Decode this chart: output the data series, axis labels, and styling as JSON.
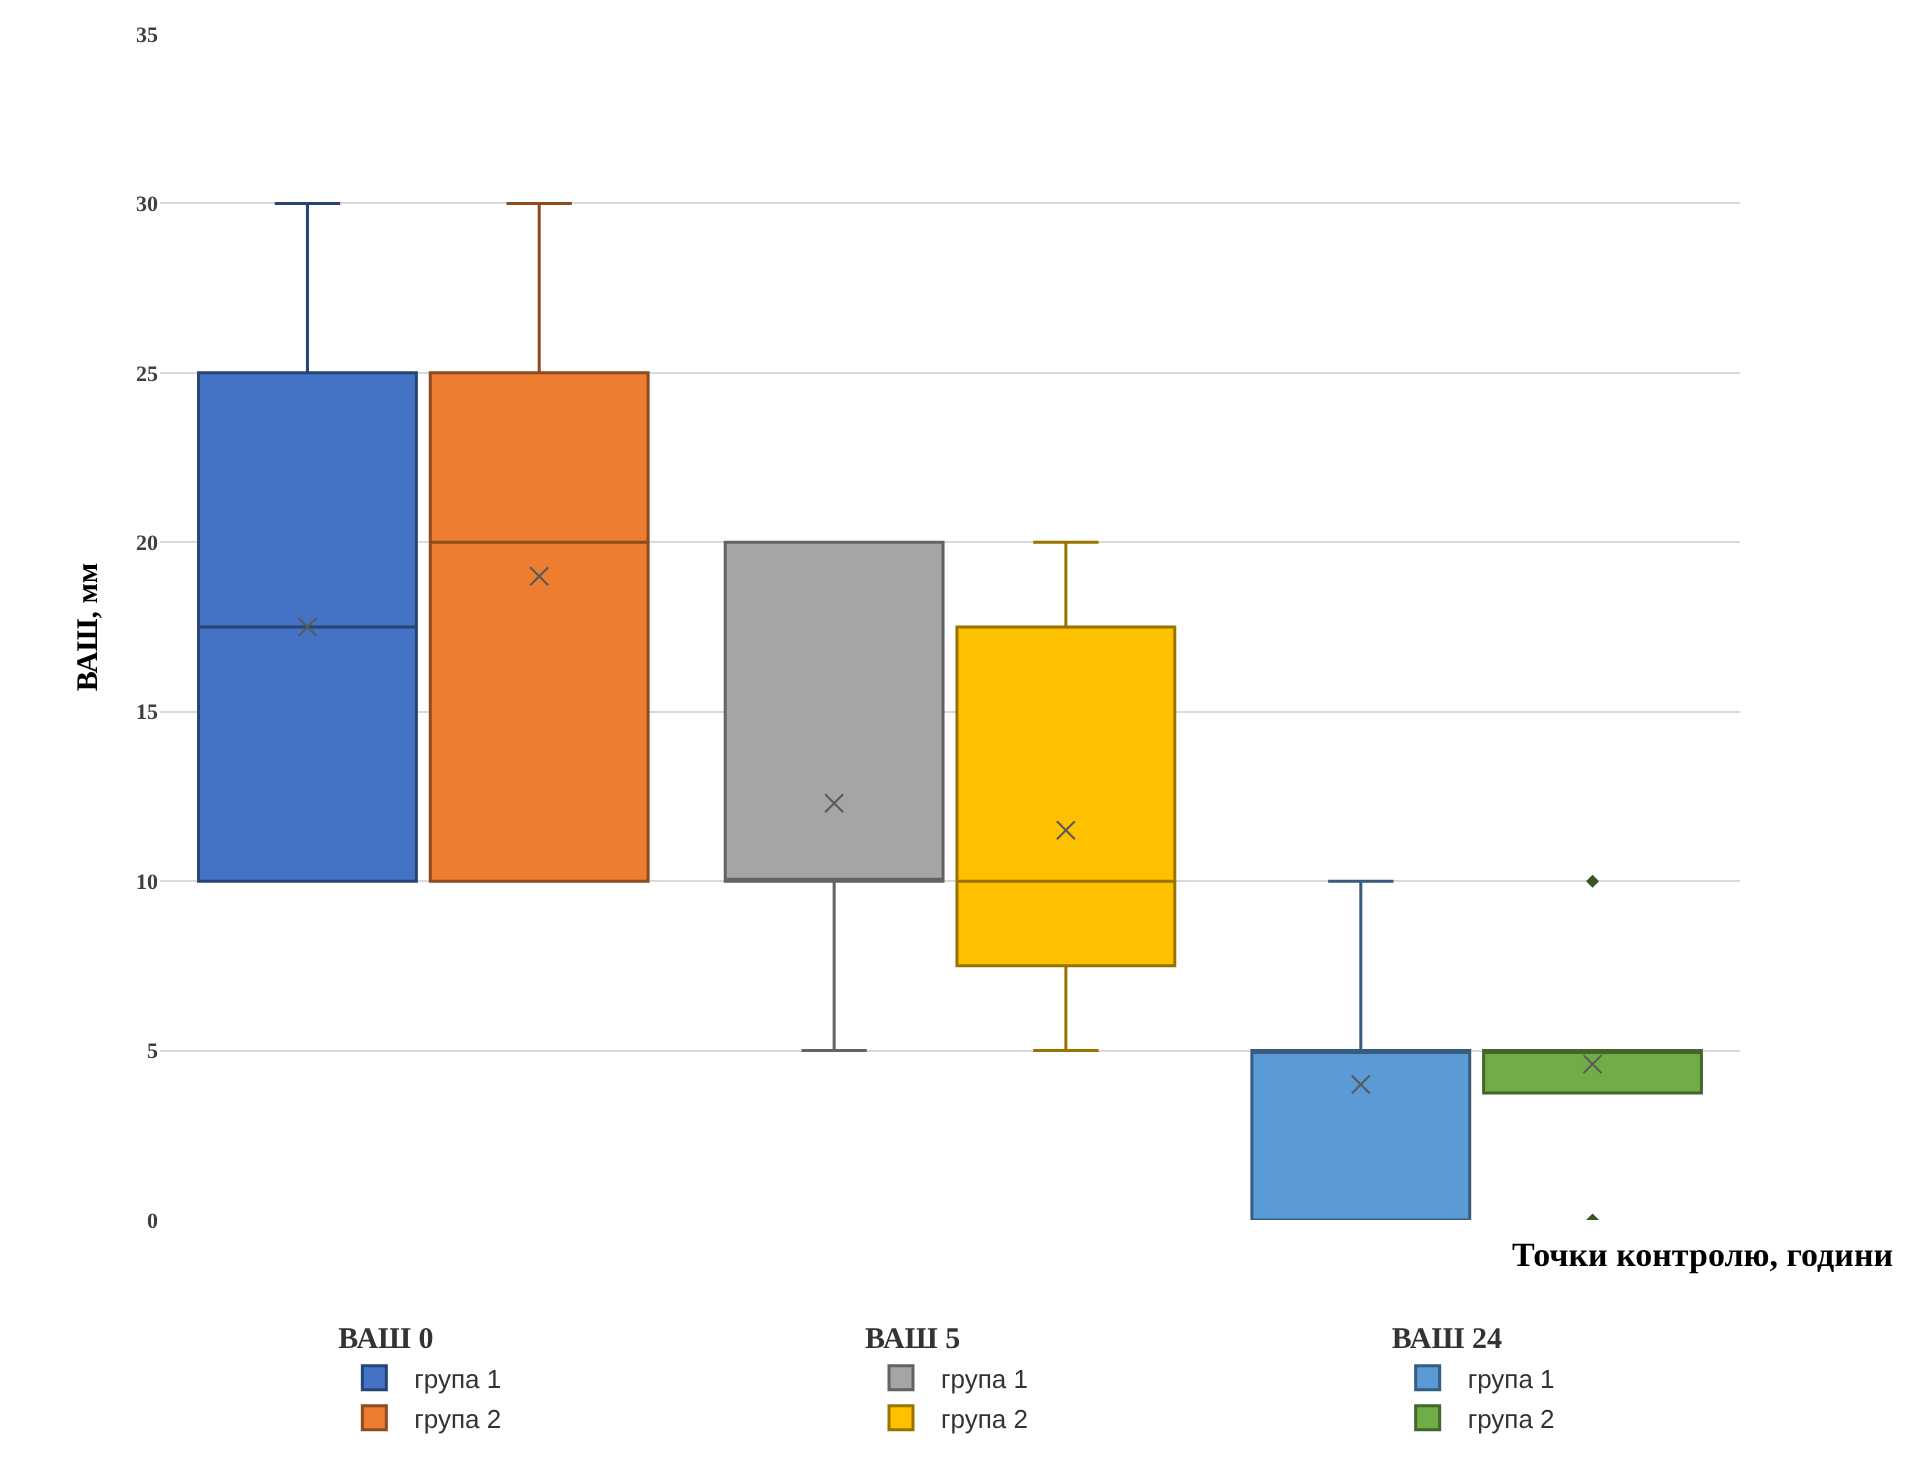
{
  "chart_data": {
    "type": "box",
    "ylabel": "ВАШ, мм",
    "xlabel": "Точки контролю, години",
    "categories": [
      "ВАШ 0",
      "ВАШ 5",
      "ВАШ 24"
    ],
    "series": [
      {
        "name": "група 1",
        "color": "#4472c4",
        "boxes": [
          {
            "low": 10,
            "q1": 10,
            "median": 17.5,
            "q3": 25,
            "high": 30,
            "mean": 17.5
          },
          null,
          null
        ]
      },
      {
        "name": "група 2",
        "color": "#ed7d31",
        "boxes": [
          {
            "low": 10,
            "q1": 10,
            "median": 20,
            "q3": 25,
            "high": 30,
            "mean": 19
          },
          null,
          null
        ]
      },
      {
        "name": "група 1",
        "color": "#a5a5a5",
        "boxes": [
          null,
          {
            "low": 5,
            "q1": 10,
            "median": 10,
            "q3": 20,
            "high": 20,
            "mean": 12.3
          },
          null
        ]
      },
      {
        "name": "група 2",
        "color": "#ffc000",
        "boxes": [
          null,
          {
            "low": 5,
            "q1": 7.5,
            "median": 10,
            "q3": 17.5,
            "high": 20,
            "mean": 11.5
          },
          null
        ]
      },
      {
        "name": "група 1",
        "color": "#5b9bd5",
        "boxes": [
          null,
          null,
          {
            "low": 0,
            "q1": 0,
            "median": 5,
            "q3": 5,
            "high": 10,
            "mean": 4
          }
        ]
      },
      {
        "name": "група 2",
        "color": "#70ad47",
        "boxes": [
          null,
          null,
          {
            "low": 3.75,
            "q1": 3.75,
            "median": 5,
            "q3": 5,
            "high": 5,
            "mean": 4.6,
            "outliers": [
              10,
              0
            ]
          }
        ]
      }
    ],
    "ylim": [
      0,
      35
    ],
    "yticks": [
      0,
      5,
      10,
      15,
      20,
      25,
      30,
      35
    ],
    "grid": "y",
    "legend": "bottom",
    "tick_labels": "y"
  }
}
